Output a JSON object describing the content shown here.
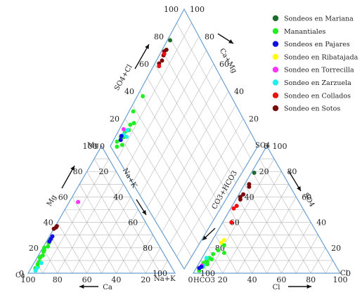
{
  "chart_data": {
    "type": "scatter",
    "subtype": "piper-diagram",
    "legend_position": "top-right",
    "legend": [
      {
        "name": "Sondeos en Mariana",
        "color": "#1e6b2e"
      },
      {
        "name": "Manantiales",
        "color": "#22ee22"
      },
      {
        "name": "Sondeos en Pajares",
        "color": "#1010e0"
      },
      {
        "name": "Sondeo en Ribatajada",
        "color": "#ffff00"
      },
      {
        "name": "Sondeo en Torrecilla",
        "color": "#ff33ff"
      },
      {
        "name": "Sondeo en Zarzuela",
        "color": "#22eeee"
      },
      {
        "name": "Sondeo en Collados",
        "color": "#ee1111"
      },
      {
        "name": "Sondeo en Sotos",
        "color": "#7a0a0a"
      }
    ],
    "ticks": [
      "0",
      "20",
      "40",
      "60",
      "80",
      "100"
    ],
    "tick_values": [
      0,
      20,
      40,
      60,
      80,
      100
    ],
    "labels": {
      "ca": "Ca",
      "ca_arrow": "Ca",
      "mg_corner": "Mg",
      "mg_arrow": "Mg",
      "nak_corner": "Na+K",
      "nak_arrow": "Na+K",
      "hco3": "HCO3",
      "cl": "Cl",
      "cl_arrow": "Cl",
      "so4_corner": "SO4",
      "so4_arrow": "SO4",
      "co3hco3": "CO3+HCO3",
      "so4cl": "SO4+Cl",
      "camg": "Ca+Mg"
    },
    "cation_triangle": {
      "axes": [
        "Ca %",
        "Mg %"
      ],
      "points": [
        {
          "series": 7,
          "ca": 65,
          "mg": 35
        },
        {
          "series": 7,
          "ca": 63,
          "mg": 36
        },
        {
          "series": 7,
          "ca": 62,
          "mg": 37
        },
        {
          "series": 4,
          "ca": 38,
          "mg": 56
        },
        {
          "series": 1,
          "ca": 93,
          "mg": 4
        },
        {
          "series": 1,
          "ca": 90,
          "mg": 7
        },
        {
          "series": 1,
          "ca": 88,
          "mg": 9
        },
        {
          "series": 1,
          "ca": 86,
          "mg": 12
        },
        {
          "series": 1,
          "ca": 85,
          "mg": 13
        },
        {
          "series": 1,
          "ca": 83,
          "mg": 14
        },
        {
          "series": 1,
          "ca": 81,
          "mg": 17
        },
        {
          "series": 1,
          "ca": 80,
          "mg": 18
        },
        {
          "series": 1,
          "ca": 79,
          "mg": 20
        },
        {
          "series": 1,
          "ca": 76,
          "mg": 21
        },
        {
          "series": 1,
          "ca": 74,
          "mg": 24
        },
        {
          "series": 1,
          "ca": 72,
          "mg": 26
        },
        {
          "series": 1,
          "ca": 91,
          "mg": 5
        },
        {
          "series": 5,
          "ca": 94,
          "mg": 2
        },
        {
          "series": 5,
          "ca": 92,
          "mg": 4
        },
        {
          "series": 5,
          "ca": 87,
          "mg": 8
        },
        {
          "series": 2,
          "ca": 71,
          "mg": 27
        },
        {
          "series": 2,
          "ca": 69,
          "mg": 29
        },
        {
          "series": 2,
          "ca": 73,
          "mg": 25
        }
      ]
    },
    "anion_triangle": {
      "axes": [
        "Cl %",
        "SO4 %"
      ],
      "points": [
        {
          "series": 0,
          "cl": 2,
          "so4": 79
        },
        {
          "series": 7,
          "cl": 3,
          "so4": 70
        },
        {
          "series": 7,
          "cl": 4,
          "so4": 68
        },
        {
          "series": 7,
          "cl": 3,
          "so4": 62
        },
        {
          "series": 7,
          "cl": 2,
          "so4": 60
        },
        {
          "series": 7,
          "cl": 3,
          "so4": 58
        },
        {
          "series": 6,
          "cl": 3,
          "so4": 53
        },
        {
          "series": 6,
          "cl": 2,
          "so4": 51
        },
        {
          "series": 6,
          "cl": 6,
          "so4": 40
        },
        {
          "series": 3,
          "cl": 8,
          "so4": 26
        },
        {
          "series": 3,
          "cl": 7,
          "so4": 24
        },
        {
          "series": 1,
          "cl": 13,
          "so4": 16
        },
        {
          "series": 1,
          "cl": 10,
          "so4": 22
        },
        {
          "series": 1,
          "cl": 8,
          "so4": 18
        },
        {
          "series": 1,
          "cl": 6,
          "so4": 15
        },
        {
          "series": 1,
          "cl": 5,
          "so4": 12
        },
        {
          "series": 1,
          "cl": 4,
          "so4": 10
        },
        {
          "series": 1,
          "cl": 3,
          "so4": 8
        },
        {
          "series": 1,
          "cl": 4,
          "so4": 5
        },
        {
          "series": 1,
          "cl": 2,
          "so4": 4
        },
        {
          "series": 1,
          "cl": 3,
          "so4": 2
        },
        {
          "series": 1,
          "cl": 6,
          "so4": 7
        },
        {
          "series": 1,
          "cl": 5,
          "so4": 9
        },
        {
          "series": 1,
          "cl": 7,
          "so4": 11
        },
        {
          "series": 5,
          "cl": 3,
          "so4": 12
        },
        {
          "series": 5,
          "cl": 4,
          "so4": 6
        },
        {
          "series": 4,
          "cl": 3,
          "so4": 6
        },
        {
          "series": 2,
          "cl": 2,
          "so4": 4
        },
        {
          "series": 2,
          "cl": 3,
          "so4": 5
        }
      ]
    },
    "diamond": {
      "axes": [
        "Na+K %",
        "SO4+Cl %"
      ],
      "points": [
        {
          "series": 0,
          "nak": 2,
          "so4cl": 79
        },
        {
          "series": 7,
          "nak": 3,
          "so4cl": 73
        },
        {
          "series": 7,
          "nak": 2,
          "so4cl": 71
        },
        {
          "series": 7,
          "nak": 3,
          "so4cl": 69
        },
        {
          "series": 7,
          "nak": 4,
          "so4cl": 66
        },
        {
          "series": 7,
          "nak": 3,
          "so4cl": 63
        },
        {
          "series": 6,
          "nak": 3,
          "so4cl": 70
        },
        {
          "series": 6,
          "nak": 4,
          "so4cl": 62
        },
        {
          "series": 1,
          "nak": 4,
          "so4cl": 40
        },
        {
          "series": 1,
          "nak": 3,
          "so4cl": 28
        },
        {
          "series": 1,
          "nak": 8,
          "so4cl": 24
        },
        {
          "series": 1,
          "nak": 6,
          "so4cl": 21
        },
        {
          "series": 1,
          "nak": 7,
          "so4cl": 18
        },
        {
          "series": 1,
          "nak": 5,
          "so4cl": 15
        },
        {
          "series": 1,
          "nak": 6,
          "so4cl": 12
        },
        {
          "series": 1,
          "nak": 4,
          "so4cl": 10
        },
        {
          "series": 1,
          "nak": 3,
          "so4cl": 6
        },
        {
          "series": 1,
          "nak": 5,
          "so4cl": 4
        },
        {
          "series": 1,
          "nak": 8,
          "so4cl": 8
        },
        {
          "series": 5,
          "nak": 6,
          "so4cl": 17
        },
        {
          "series": 5,
          "nak": 8,
          "so4cl": 14
        },
        {
          "series": 5,
          "nak": 5,
          "so4cl": 13
        },
        {
          "series": 4,
          "nak": 3,
          "so4cl": 15
        },
        {
          "series": 2,
          "nak": 4,
          "so4cl": 11
        },
        {
          "series": 2,
          "nak": 5,
          "so4cl": 9
        }
      ]
    }
  }
}
